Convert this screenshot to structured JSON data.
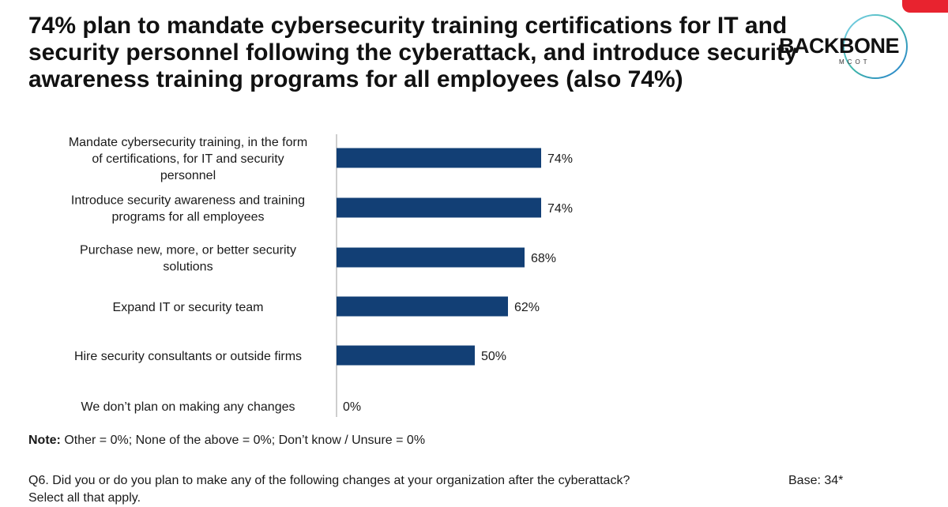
{
  "title_lines": [
    "74% plan to mandate cybersecurity training certifications for IT and",
    "security personnel following the cyberattack, and introduce security",
    "awareness training programs for all employees (also 74%)"
  ],
  "logo": {
    "text": "BACKBONE",
    "subtext": "MCOT"
  },
  "colors": {
    "bar": "#123f75",
    "corner_accent": "#e8232f"
  },
  "chart_data": {
    "type": "bar",
    "orientation": "horizontal",
    "categories": [
      [
        "Mandate cybersecurity training, in the form",
        "of certifications, for IT and security",
        "personnel"
      ],
      [
        "Introduce security awareness and training",
        "programs for all employees"
      ],
      [
        "Purchase new, more, or better security",
        "solutions"
      ],
      [
        "Expand IT or security team"
      ],
      [
        "Hire security consultants or outside firms"
      ],
      [
        "We don’t plan on making any changes"
      ]
    ],
    "values": [
      74,
      74,
      68,
      62,
      50,
      0
    ],
    "value_labels": [
      "74%",
      "74%",
      "68%",
      "62%",
      "50%",
      "0%"
    ],
    "xlim": [
      0,
      100
    ],
    "grid": false
  },
  "note": {
    "label": "Note:",
    "text": " Other = 0%; None of the above = 0%; Don’t know / Unsure = 0%"
  },
  "question": {
    "text": "Q6.  Did you or do you plan to make any of the following changes at your organization after the cyberattack?",
    "line2": "Select all that apply.",
    "base": "Base: 34*"
  }
}
